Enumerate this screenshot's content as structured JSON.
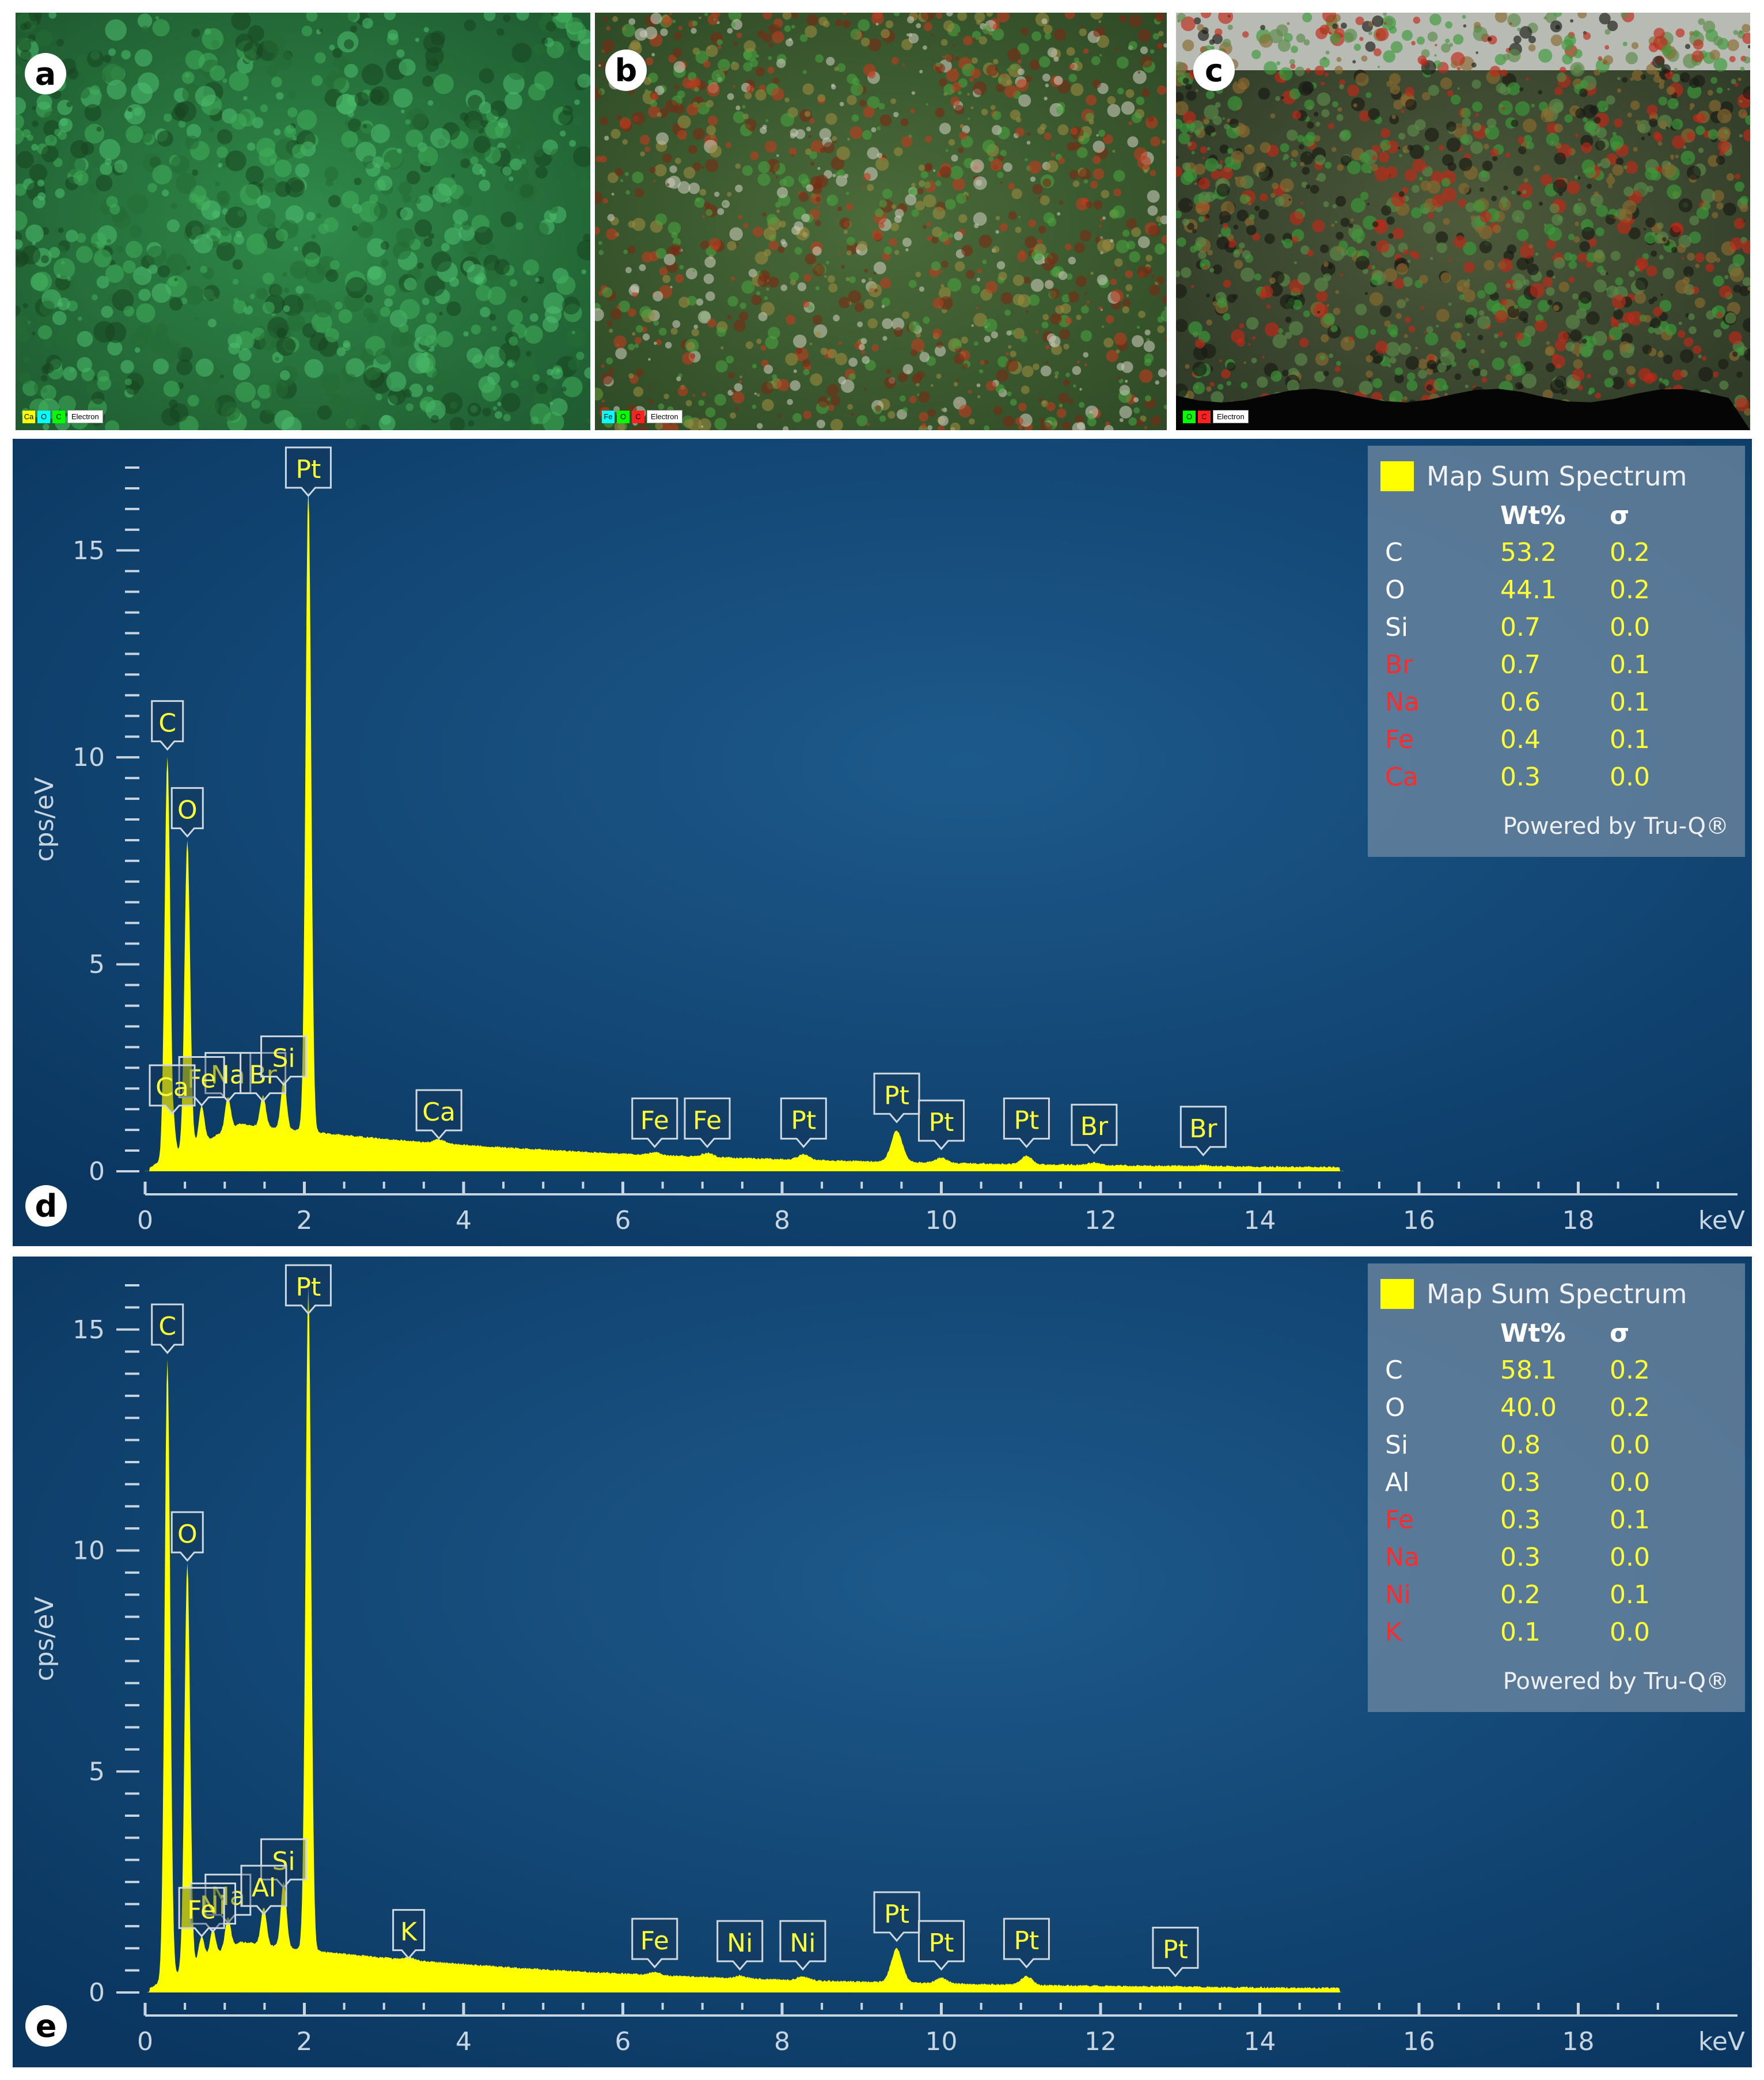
{
  "maps": [
    {
      "letter": "a",
      "legend": [
        "Ca",
        "O",
        "C",
        "Electron"
      ],
      "legend_colors": [
        "#ffff00",
        "#00ffff",
        "#00ff00"
      ]
    },
    {
      "letter": "b",
      "legend": [
        "Fe",
        "O",
        "C",
        "Electron"
      ],
      "legend_colors": [
        "#00ffff",
        "#00ff00",
        "#ff2020"
      ]
    },
    {
      "letter": "c",
      "legend": [
        "O",
        "C",
        "Electron"
      ],
      "legend_colors": [
        "#00ff00",
        "#ff2020"
      ]
    }
  ],
  "chart_data": [
    {
      "panel": "d",
      "type": "area",
      "ylabel": "cps/eV",
      "xunit": "keV",
      "xlim": [
        0,
        20
      ],
      "ylim": [
        0,
        17
      ],
      "xticks": [
        "0",
        "2",
        "4",
        "6",
        "8",
        "10",
        "12",
        "14",
        "16",
        "18"
      ],
      "yticks": [
        "0",
        "5",
        "10",
        "15"
      ],
      "peaks": [
        {
          "label": "Pt",
          "x": 2.05,
          "y": 16.1
        },
        {
          "label": "C",
          "x": 0.28,
          "y": 9.9
        },
        {
          "label": "O",
          "x": 0.53,
          "y": 7.8
        },
        {
          "label": "Na",
          "x": 1.04,
          "y": 1.4
        },
        {
          "label": "Br",
          "x": 1.48,
          "y": 1.4
        },
        {
          "label": "Fe",
          "x": 0.71,
          "y": 1.3
        },
        {
          "label": "Si",
          "x": 1.74,
          "y": 1.8
        },
        {
          "label": "Ca",
          "x": 0.34,
          "y": 1.1
        },
        {
          "label": "Ca",
          "x": 3.69,
          "y": 0.5
        },
        {
          "label": "Fe",
          "x": 6.4,
          "y": 0.3
        },
        {
          "label": "Fe",
          "x": 7.06,
          "y": 0.3
        },
        {
          "label": "Pt",
          "x": 8.27,
          "y": 0.3
        },
        {
          "label": "Pt",
          "x": 9.44,
          "y": 0.9
        },
        {
          "label": "Pt",
          "x": 10.0,
          "y": 0.25
        },
        {
          "label": "Pt",
          "x": 11.07,
          "y": 0.3
        },
        {
          "label": "Br",
          "x": 11.92,
          "y": 0.15
        },
        {
          "label": "Br",
          "x": 13.29,
          "y": 0.1
        }
      ],
      "summary": {
        "title": "Map Sum Spectrum",
        "col_wt": "Wt%",
        "col_sigma": "σ",
        "rows": [
          {
            "el": "C",
            "wt": "53.2",
            "sigma": "0.2",
            "flag": false
          },
          {
            "el": "O",
            "wt": "44.1",
            "sigma": "0.2",
            "flag": false
          },
          {
            "el": "Si",
            "wt": "0.7",
            "sigma": "0.0",
            "flag": false
          },
          {
            "el": "Br",
            "wt": "0.7",
            "sigma": "0.1",
            "flag": true
          },
          {
            "el": "Na",
            "wt": "0.6",
            "sigma": "0.1",
            "flag": true
          },
          {
            "el": "Fe",
            "wt": "0.4",
            "sigma": "0.1",
            "flag": true
          },
          {
            "el": "Ca",
            "wt": "0.3",
            "sigma": "0.0",
            "flag": true
          }
        ],
        "footer": "Powered by Tru-Q®"
      }
    },
    {
      "panel": "e",
      "type": "area",
      "ylabel": "cps/eV",
      "xunit": "keV",
      "xlim": [
        0,
        20
      ],
      "ylim": [
        0,
        16
      ],
      "xticks": [
        "0",
        "2",
        "4",
        "6",
        "8",
        "10",
        "12",
        "14",
        "16",
        "18"
      ],
      "yticks": [
        "0",
        "5",
        "10",
        "15"
      ],
      "peaks": [
        {
          "label": "C",
          "x": 0.28,
          "y": 14.2
        },
        {
          "label": "Pt",
          "x": 2.05,
          "y": 15.6
        },
        {
          "label": "O",
          "x": 0.53,
          "y": 9.5
        },
        {
          "label": "Na",
          "x": 1.04,
          "y": 1.3
        },
        {
          "label": "Si",
          "x": 1.74,
          "y": 2.1
        },
        {
          "label": "Ni",
          "x": 0.85,
          "y": 1.1
        },
        {
          "label": "Al",
          "x": 1.49,
          "y": 1.5
        },
        {
          "label": "Fe",
          "x": 0.71,
          "y": 1.0
        },
        {
          "label": "K",
          "x": 3.31,
          "y": 0.5
        },
        {
          "label": "Fe",
          "x": 6.4,
          "y": 0.3
        },
        {
          "label": "Ni",
          "x": 7.47,
          "y": 0.25
        },
        {
          "label": "Ni",
          "x": 8.26,
          "y": 0.25
        },
        {
          "label": "Pt",
          "x": 9.44,
          "y": 0.9
        },
        {
          "label": "Pt",
          "x": 10.0,
          "y": 0.25
        },
        {
          "label": "Pt",
          "x": 11.07,
          "y": 0.3
        },
        {
          "label": "Pt",
          "x": 12.94,
          "y": 0.1
        }
      ],
      "summary": {
        "title": "Map Sum Spectrum",
        "col_wt": "Wt%",
        "col_sigma": "σ",
        "rows": [
          {
            "el": "C",
            "wt": "58.1",
            "sigma": "0.2",
            "flag": false
          },
          {
            "el": "O",
            "wt": "40.0",
            "sigma": "0.2",
            "flag": false
          },
          {
            "el": "Si",
            "wt": "0.8",
            "sigma": "0.0",
            "flag": false
          },
          {
            "el": "Al",
            "wt": "0.3",
            "sigma": "0.0",
            "flag": false
          },
          {
            "el": "Fe",
            "wt": "0.3",
            "sigma": "0.1",
            "flag": true
          },
          {
            "el": "Na",
            "wt": "0.3",
            "sigma": "0.0",
            "flag": true
          },
          {
            "el": "Ni",
            "wt": "0.2",
            "sigma": "0.1",
            "flag": true
          },
          {
            "el": "K",
            "wt": "0.1",
            "sigma": "0.0",
            "flag": true
          }
        ],
        "footer": "Powered by Tru-Q®"
      }
    }
  ],
  "colors": {
    "spectrum_fill": "#ffff00",
    "plot_bg_center": "#1d5a8c",
    "plot_bg_edge": "#0a3660",
    "label_text": "#ffff33",
    "flag_text": "#ff2a2a",
    "axis": "#c8d4e0"
  }
}
